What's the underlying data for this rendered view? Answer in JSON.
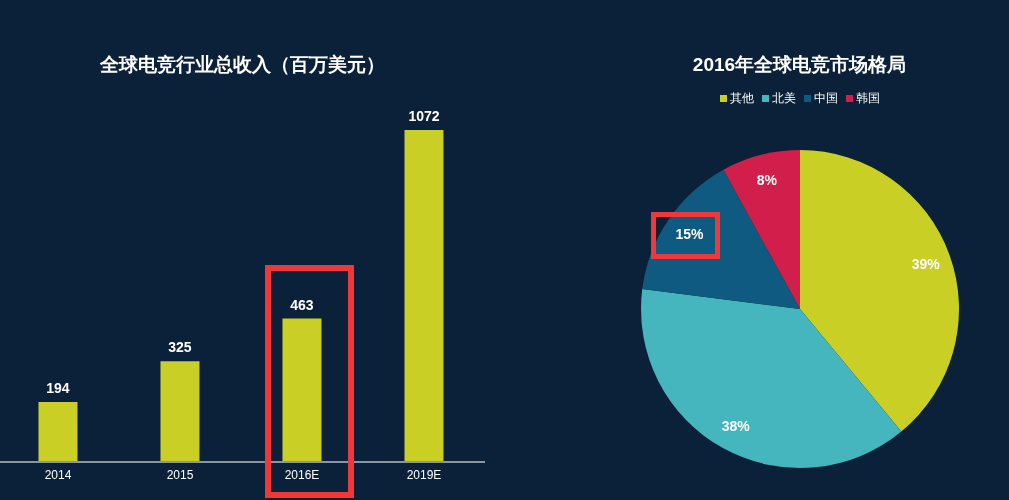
{
  "chart_data": [
    {
      "type": "bar",
      "title": "全球电竞行业总收入（百万美元）",
      "categories": [
        "2014",
        "2015",
        "2016E",
        "2019E"
      ],
      "values": [
        194,
        325,
        463,
        1072
      ],
      "color": "#c9cf24",
      "data_labels": true,
      "grid": false,
      "legend": false
    },
    {
      "type": "pie",
      "title": "2016年全球电竞市场格局",
      "categories": [
        "其他",
        "北美",
        "中国",
        "韩国"
      ],
      "values": [
        39,
        38,
        15,
        8
      ],
      "colors": [
        "#c9cf24",
        "#45b6bd",
        "#0e5a80",
        "#d21e4a"
      ],
      "value_labels": [
        "39%",
        "38%",
        "15%",
        "8%"
      ],
      "legend": "top"
    }
  ]
}
